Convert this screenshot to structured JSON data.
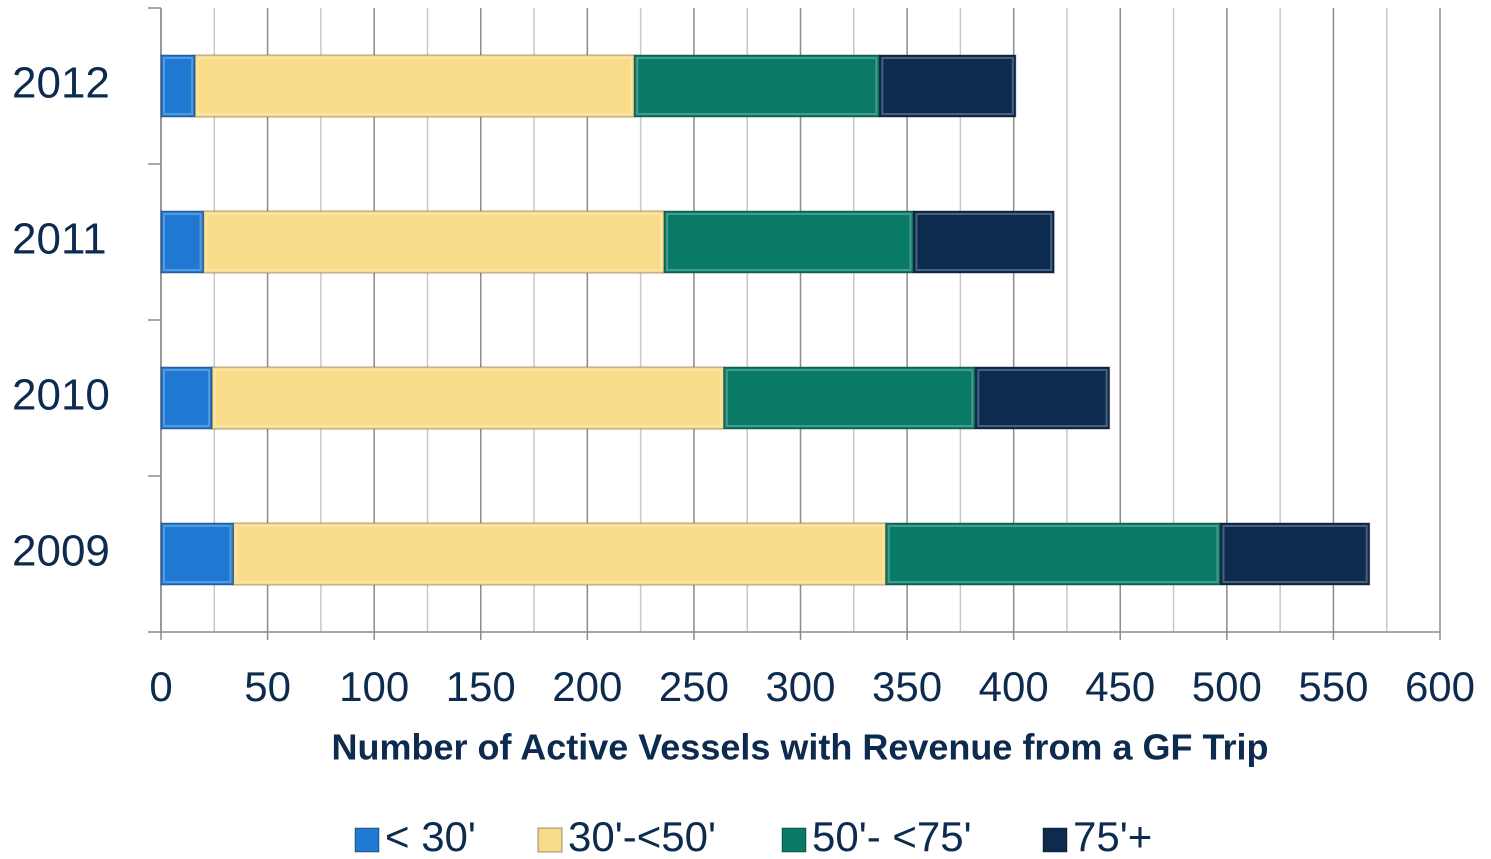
{
  "chart_data": {
    "type": "stacked-barh",
    "x_label": "Number of Active Vessels with Revenue from a GF Trip",
    "categories": [
      "2009",
      "2010",
      "2011",
      "2012"
    ],
    "series": [
      {
        "name": "< 30'",
        "color": "#1f78d1",
        "values": [
          34,
          24,
          20,
          16
        ]
      },
      {
        "name": "30'-<50'",
        "color": "#f9dc8a",
        "values": [
          306,
          240,
          216,
          206
        ]
      },
      {
        "name": "50'- <75'",
        "color": "#0a7a68",
        "values": [
          157,
          118,
          117,
          115
        ]
      },
      {
        "name": "75'+",
        "color": "#0d2a4f",
        "values": [
          70,
          63,
          66,
          64
        ]
      }
    ],
    "xlim": [
      0,
      600
    ],
    "xticks": [
      0,
      50,
      100,
      150,
      200,
      250,
      300,
      350,
      400,
      450,
      500,
      550,
      600
    ],
    "xminorticks": [
      25,
      75,
      125,
      175,
      225,
      275,
      325,
      375,
      425,
      475,
      525,
      575
    ],
    "grid": true,
    "legend": "bottom"
  }
}
